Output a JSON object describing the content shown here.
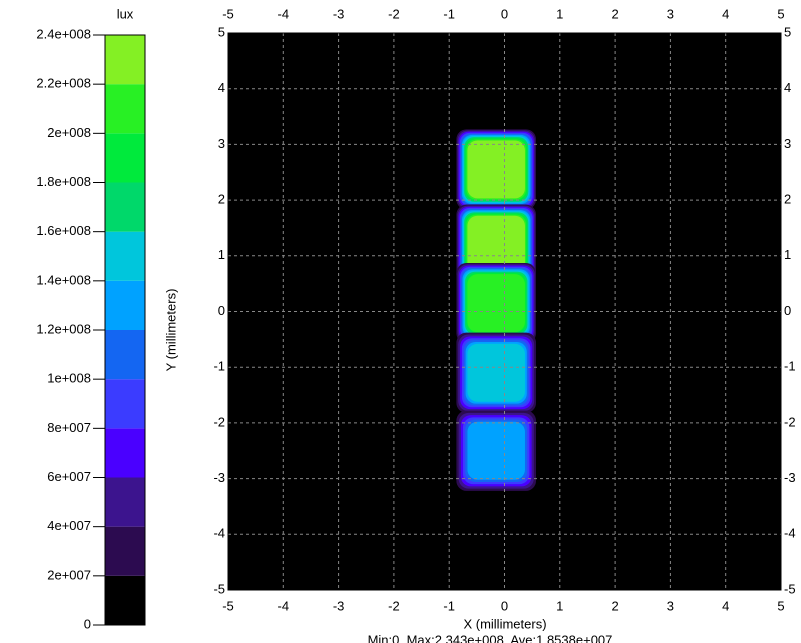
{
  "chart_data": {
    "type": "contour",
    "colorbar": {
      "title": "lux",
      "lim": [
        0,
        240000000
      ],
      "ticks": [
        0,
        {
          "value": 20000000,
          "label": "2e+007"
        },
        {
          "value": 40000000,
          "label": "4e+007"
        },
        {
          "value": 60000000,
          "label": "6e+007"
        },
        {
          "value": 80000000,
          "label": "8e+007"
        },
        {
          "value": 100000000,
          "label": "1e+008"
        },
        {
          "value": 120000000,
          "label": "1.2e+008"
        },
        {
          "value": 140000000,
          "label": "1.4e+008"
        },
        {
          "value": 160000000,
          "label": "1.6e+008"
        },
        {
          "value": 180000000,
          "label": "1.8e+008"
        },
        {
          "value": 200000000,
          "label": "2e+008"
        },
        {
          "value": 220000000,
          "label": "2.2e+008"
        },
        {
          "value": 240000000,
          "label": "2.4e+008"
        }
      ],
      "colors": [
        "#000000",
        "#2c0b50",
        "#3c148e",
        "#4a00ff",
        "#3b3cff",
        "#1466f2",
        "#00a2ff",
        "#00c6dc",
        "#00d86a",
        "#00ea3c",
        "#28f024",
        "#84f024"
      ]
    },
    "xlabel": "X (millimeters)",
    "ylabel": "Y (millimeters)",
    "xlim": [
      -5,
      5
    ],
    "ylim": [
      -5,
      5
    ],
    "xticks": [
      -5,
      -4,
      -3,
      -2,
      -1,
      0,
      1,
      2,
      3,
      4,
      5
    ],
    "yticks": [
      -5,
      -4,
      -3,
      -2,
      -1,
      0,
      1,
      2,
      3,
      4,
      5
    ],
    "grid": true,
    "spots": {
      "x": [
        -0.15,
        -0.15,
        -0.15,
        -0.15,
        -0.15
      ],
      "y": [
        2.55,
        1.2,
        0.15,
        -1.1,
        -2.5
      ],
      "values": [
        220000000,
        220000000,
        200000000,
        140000000,
        130000000
      ]
    },
    "note": "Min:0, Max:2.343e+008, Ave:1.8538e+007"
  }
}
